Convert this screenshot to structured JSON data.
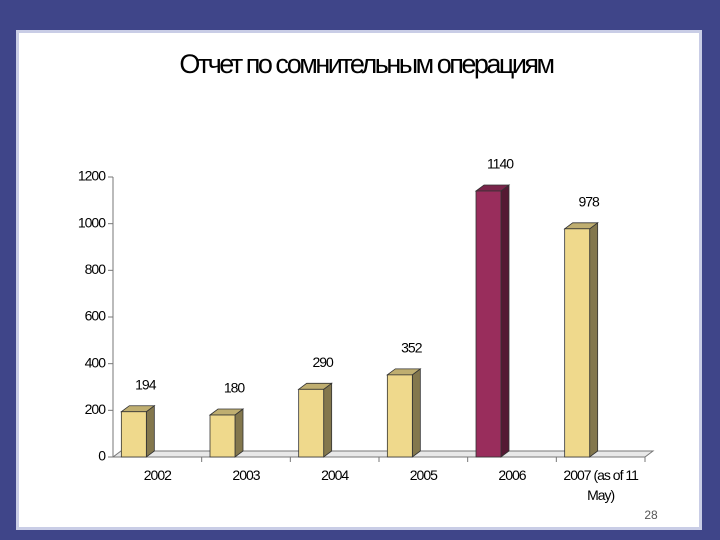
{
  "chart_data": {
    "type": "bar3d",
    "title": "Отчет по сомнительным операциям",
    "categories": [
      "2002",
      "2003",
      "2004",
      "2005",
      "2006",
      "2007 (as of 11 May)"
    ],
    "values": [
      194,
      180,
      290,
      352,
      1140,
      978
    ],
    "colors": [
      "#efd98c",
      "#efd98c",
      "#efd98c",
      "#efd98c",
      "#992d5c",
      "#efd98c"
    ],
    "ylim": [
      0,
      1200
    ],
    "yticks": [
      0,
      200,
      400,
      600,
      800,
      1000,
      1200
    ]
  },
  "page_number": "28"
}
